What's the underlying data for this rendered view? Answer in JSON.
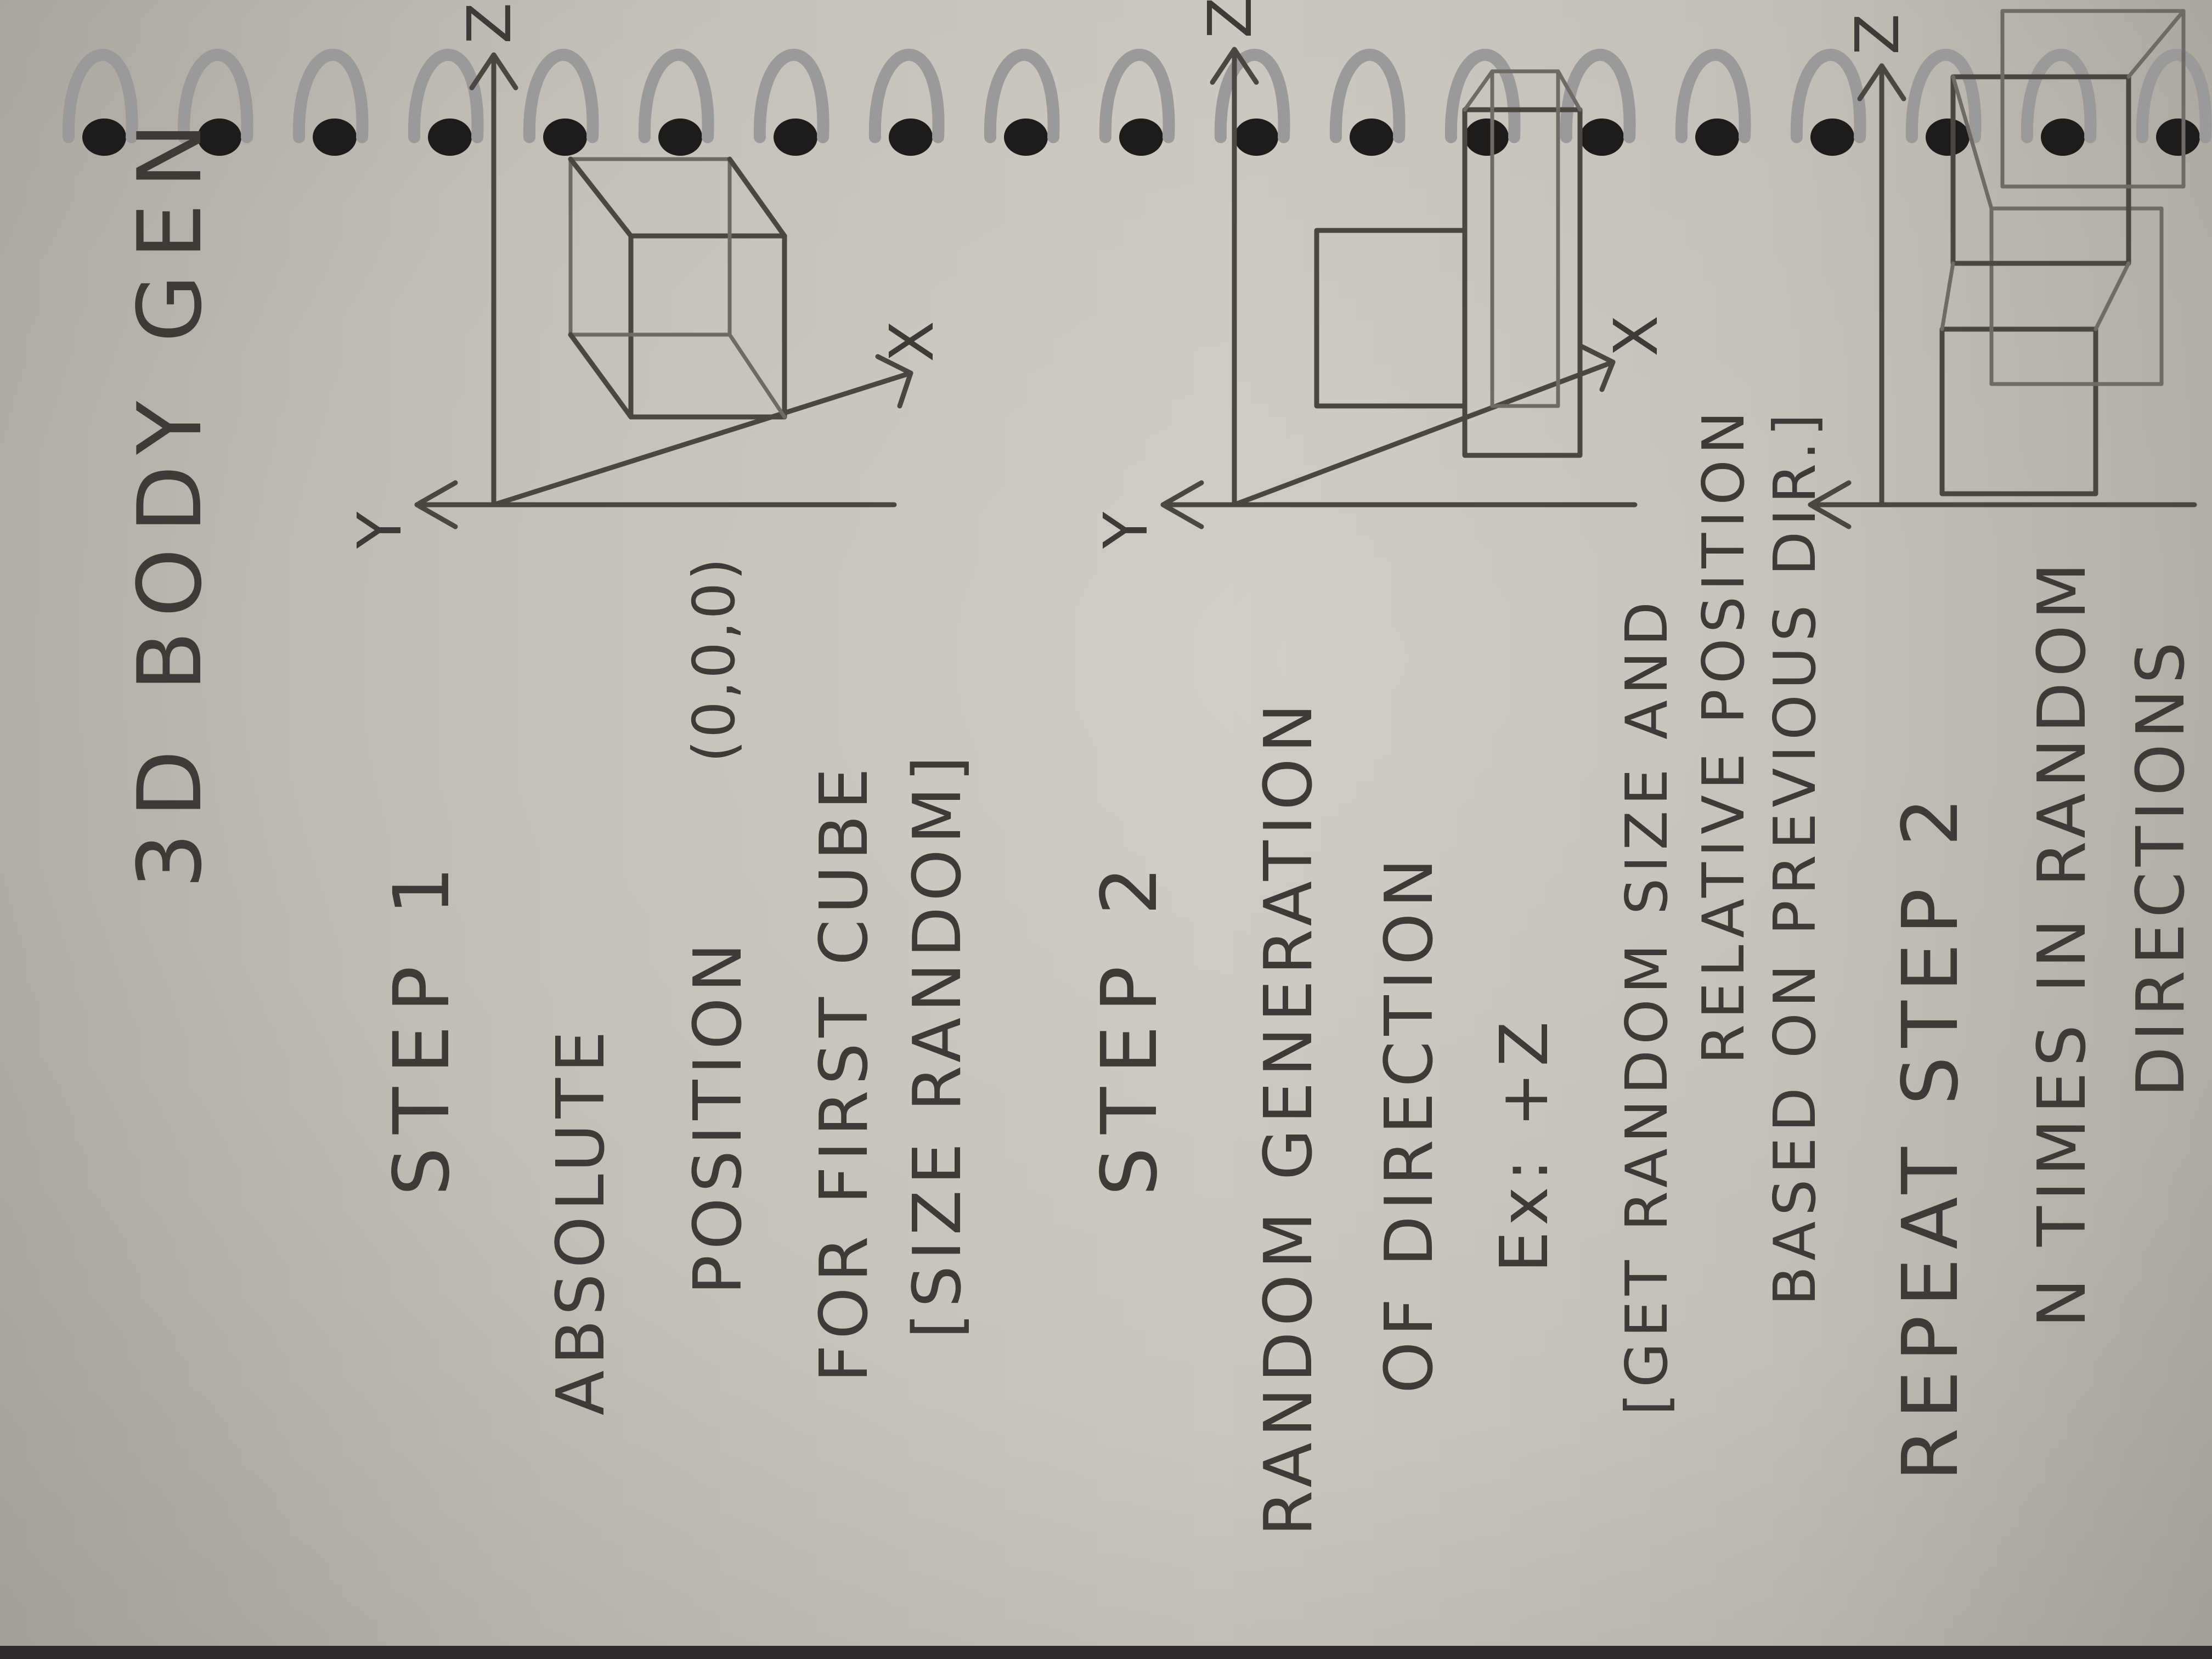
{
  "title": "3D BODY GEN",
  "step1": {
    "heading": "STEP 1",
    "line1": "ABSOLUTE",
    "line2": "POSITION",
    "line3": "FOR FIRST CUBE",
    "coords": "(0,0,0)",
    "line4": "[SIZE RANDOM]"
  },
  "step2": {
    "heading": "STEP 2",
    "line1": "RANDOM GENERATION",
    "line2": "OF DIRECTION",
    "line3": "Ex: +Z",
    "line4": "[GET RANDOM SIZE AND",
    "line5": "RELATIVE POSITION",
    "line6": "BASED ON PREVIOUS DIR.]"
  },
  "step3": {
    "line1": "REPEAT STEP 2",
    "line2": "N TIMES IN RANDOM",
    "line3": "DIRECTIONS"
  },
  "axes": {
    "x": "X",
    "y": "Y",
    "z": "Z"
  },
  "colors": {
    "paper": "#c6c2ba",
    "ink": "#3d3a37",
    "background": "#2e2b2a",
    "spiral": "#9a9a9a"
  }
}
